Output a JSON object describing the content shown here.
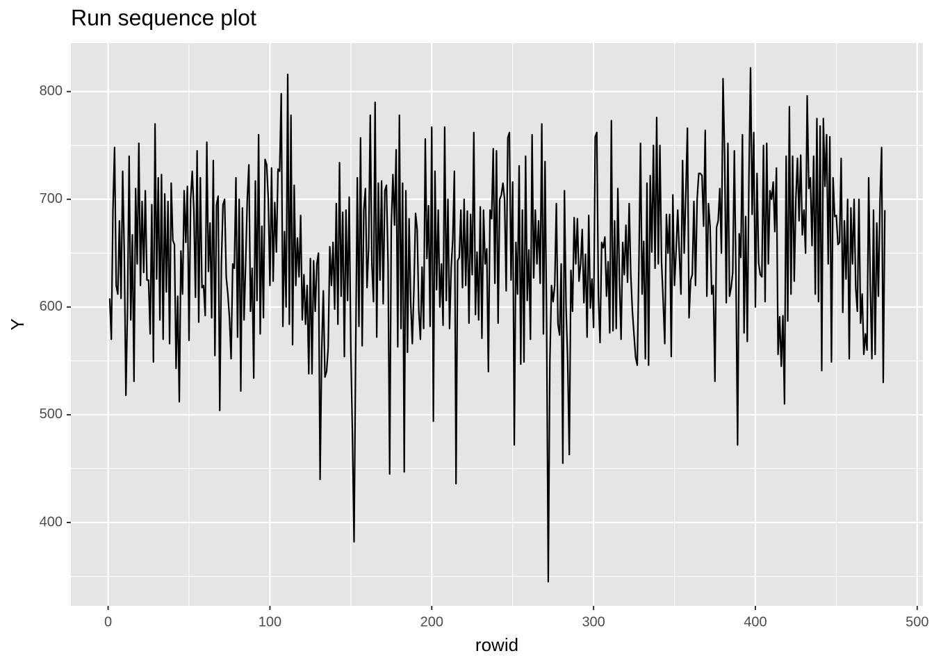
{
  "chart_data": {
    "type": "line",
    "title": "Run sequence plot",
    "x_label": "rowid",
    "y_label": "Y",
    "xlim": [
      -23,
      503.5
    ],
    "ylim": [
      322.6,
      845
    ],
    "xticks": [
      0,
      100,
      200,
      300,
      400,
      500
    ],
    "yticks": [
      400,
      500,
      600,
      700,
      800
    ],
    "xminor_ticks": [
      50,
      150,
      250,
      350,
      450
    ],
    "yminor_ticks": [
      350,
      450,
      550,
      650,
      750
    ],
    "grid": true,
    "background": "#e5e5e5",
    "series": [
      {
        "name": "Y",
        "color": "#000000",
        "x": [
          1,
          2,
          3,
          4,
          5,
          6,
          7,
          8,
          9,
          10,
          11,
          12,
          13,
          14,
          15,
          16,
          17,
          18,
          19,
          20,
          21,
          22,
          23,
          24,
          25,
          26,
          27,
          28,
          29,
          30,
          31,
          32,
          33,
          34,
          35,
          36,
          37,
          38,
          39,
          40,
          41,
          42,
          43,
          44,
          45,
          46,
          47,
          48,
          49,
          50,
          51,
          52,
          53,
          54,
          55,
          56,
          57,
          58,
          59,
          60,
          61,
          62,
          63,
          64,
          65,
          66,
          67,
          68,
          69,
          70,
          71,
          72,
          73,
          74,
          75,
          76,
          77,
          78,
          79,
          80,
          81,
          82,
          83,
          84,
          85,
          86,
          87,
          88,
          89,
          90,
          91,
          92,
          93,
          94,
          95,
          96,
          97,
          98,
          99,
          100,
          101,
          102,
          103,
          104,
          105,
          106,
          107,
          108,
          109,
          110,
          111,
          112,
          113,
          114,
          115,
          116,
          117,
          118,
          119,
          120,
          121,
          122,
          123,
          124,
          125,
          126,
          127,
          128,
          129,
          130,
          131,
          132,
          133,
          134,
          135,
          136,
          137,
          138,
          139,
          140,
          141,
          142,
          143,
          144,
          145,
          146,
          147,
          148,
          149,
          150,
          151,
          152,
          153,
          154,
          155,
          156,
          157,
          158,
          159,
          160,
          161,
          162,
          163,
          164,
          165,
          166,
          167,
          168,
          169,
          170,
          171,
          172,
          173,
          174,
          175,
          176,
          177,
          178,
          179,
          180,
          181,
          182,
          183,
          184,
          185,
          186,
          187,
          188,
          189,
          190,
          191,
          192,
          193,
          194,
          195,
          196,
          197,
          198,
          199,
          200,
          201,
          202,
          203,
          204,
          205,
          206,
          207,
          208,
          209,
          210,
          211,
          212,
          213,
          214,
          215,
          216,
          217,
          218,
          219,
          220,
          221,
          222,
          223,
          224,
          225,
          226,
          227,
          228,
          229,
          230,
          231,
          232,
          233,
          234,
          235,
          236,
          237,
          238,
          239,
          240,
          241,
          242,
          243,
          244,
          245,
          246,
          247,
          248,
          249,
          250,
          251,
          252,
          253,
          254,
          255,
          256,
          257,
          258,
          259,
          260,
          261,
          262,
          263,
          264,
          265,
          266,
          267,
          268,
          269,
          270,
          271,
          272,
          273,
          274,
          275,
          276,
          277,
          278,
          279,
          280,
          281,
          282,
          283,
          284,
          285,
          286,
          287,
          288,
          289,
          290,
          291,
          292,
          293,
          294,
          295,
          296,
          297,
          298,
          299,
          300,
          301,
          302,
          303,
          304,
          305,
          306,
          307,
          308,
          309,
          310,
          311,
          312,
          313,
          314,
          315,
          316,
          317,
          318,
          319,
          320,
          321,
          322,
          323,
          324,
          325,
          326,
          327,
          328,
          329,
          330,
          331,
          332,
          333,
          334,
          335,
          336,
          337,
          338,
          339,
          340,
          341,
          342,
          343,
          344,
          345,
          346,
          347,
          348,
          349,
          350,
          351,
          352,
          353,
          354,
          355,
          356,
          357,
          358,
          359,
          360,
          361,
          362,
          363,
          364,
          365,
          366,
          367,
          368,
          369,
          370,
          371,
          372,
          373,
          374,
          375,
          376,
          377,
          378,
          379,
          380,
          381,
          382,
          383,
          384,
          385,
          386,
          387,
          388,
          389,
          390,
          391,
          392,
          393,
          394,
          395,
          396,
          397,
          398,
          399,
          400,
          401,
          402,
          403,
          404,
          405,
          406,
          407,
          408,
          409,
          410,
          411,
          412,
          413,
          414,
          415,
          416,
          417,
          418,
          419,
          420,
          421,
          422,
          423,
          424,
          425,
          426,
          427,
          428,
          429,
          430,
          431,
          432,
          433,
          434,
          435,
          436,
          437,
          438,
          439,
          440,
          441,
          442,
          443,
          444,
          445,
          446,
          447,
          448,
          449,
          450,
          451,
          452,
          453,
          454,
          455,
          456,
          457,
          458,
          459,
          460,
          461,
          462,
          463,
          464,
          465,
          466,
          467,
          468,
          469,
          470,
          471,
          472,
          473,
          474,
          475,
          476,
          477,
          478,
          479,
          480
        ],
        "values": [
          608,
          570,
          690,
          748,
          620,
          612,
          680,
          608,
          726,
          650,
          518,
          600,
          740,
          588,
          667,
          531,
          710,
          640,
          752,
          620,
          698,
          632,
          708,
          625,
          625,
          575,
          695,
          549,
          770,
          626,
          720,
          588,
          723,
          570,
          705,
          614,
          698,
          566,
          715,
          662,
          658,
          543,
          610,
          512,
          652,
          612,
          708,
          660,
          712,
          569,
          700,
          726,
          690,
          609,
          745,
          586,
          720,
          618,
          620,
          592,
          753,
          633,
          678,
          590,
          736,
          555,
          695,
          703,
          504,
          640,
          695,
          700,
          628,
          612,
          590,
          552,
          640,
          636,
          720,
          572,
          700,
          522,
          692,
          588,
          640,
          700,
          732,
          596,
          636,
          534,
          717,
          606,
          760,
          575,
          675,
          590,
          737,
          732,
          700,
          620,
          729,
          624,
          697,
          651,
          728,
          726,
          798,
          582,
          670,
          600,
          816,
          584,
          778,
          565,
          713,
          620,
          664,
          628,
          685,
          588,
          630,
          584,
          620,
          538,
          645,
          538,
          643,
          596,
          640,
          650,
          440,
          560,
          615,
          535,
          540,
          562,
          656,
          620,
          660,
          598,
          696,
          584,
          734,
          610,
          688,
          554,
          690,
          606,
          702,
          560,
          480,
          382,
          560,
          720,
          582,
          757,
          564,
          690,
          710,
          618,
          655,
          778,
          640,
          605,
          790,
          572,
          715,
          625,
          717,
          603,
          708,
          713,
          640,
          445,
          675,
          723,
          676,
          746,
          563,
          778,
          580,
          715,
          447,
          708,
          558,
          682,
          604,
          566,
          618,
          687,
          672,
          596,
          570,
          637,
          580,
          756,
          645,
          694,
          582,
          767,
          494,
          726,
          616,
          690,
          600,
          640,
          583,
          767,
          606,
          700,
          580,
          636,
          663,
          726,
          436,
          643,
          646,
          690,
          618,
          700,
          620,
          689,
          585,
          686,
          630,
          762,
          593,
          651,
          588,
          693,
          571,
          690,
          640,
          654,
          540,
          690,
          682,
          747,
          622,
          745,
          585,
          700,
          704,
          715,
          700,
          615,
          757,
          762,
          625,
          716,
          472,
          660,
          612,
          731,
          547,
          690,
          549,
          740,
          606,
          653,
          570,
          760,
          627,
          690,
          640,
          680,
          622,
          770,
          575,
          735,
          583,
          345,
          550,
          620,
          605,
          620,
          696,
          584,
          574,
          640,
          455,
          708,
          600,
          550,
          463,
          634,
          596,
          683,
          640,
          682,
          624,
          640,
          672,
          604,
          649,
          572,
          685,
          599,
          626,
          581,
          758,
          762,
          610,
          567,
          660,
          655,
          665,
          610,
          642,
          576,
          773,
          578,
          680,
          580,
          710,
          625,
          570,
          660,
          630,
          676,
          623,
          696,
          630,
          596,
          574,
          553,
          546,
          638,
          752,
          612,
          661,
          552,
          715,
          546,
          722,
          651,
          750,
          636,
          776,
          640,
          750,
          642,
          606,
          566,
          686,
          650,
          686,
          554,
          704,
          620,
          652,
          690,
          650,
          612,
          736,
          650,
          705,
          766,
          590,
          625,
          630,
          698,
          620,
          700,
          724,
          724,
          722,
          675,
          764,
          610,
          696,
          675,
          612,
          620,
          531,
          674,
          680,
          710,
          650,
          812,
          740,
          604,
          752,
          610,
          618,
          632,
          745,
          627,
          472,
          668,
          646,
          760,
          576,
          684,
          568,
          720,
          822,
          686,
          762,
          600,
          724,
          641,
          630,
          628,
          750,
          605,
          752,
          640,
          708,
          700,
          716,
          670,
          729,
          556,
          591,
          545,
          592,
          510,
          740,
          587,
          786,
          612,
          740,
          624,
          700,
          738,
          680,
          741,
          667,
          690,
          650,
          796,
          710,
          720,
          657,
          740,
          612,
          775,
          605,
          768,
          541,
          775,
          712,
          760,
          640,
          758,
          549,
          720,
          684,
          685,
          658,
          660,
          738,
          595,
          680,
          626,
          700,
          552,
          692,
          640,
          700,
          618,
          596,
          700,
          585,
          612,
          556,
          575,
          560,
          720,
          620,
          552,
          690,
          556,
          678,
          610,
          698,
          748,
          530,
          690
        ]
      }
    ]
  }
}
